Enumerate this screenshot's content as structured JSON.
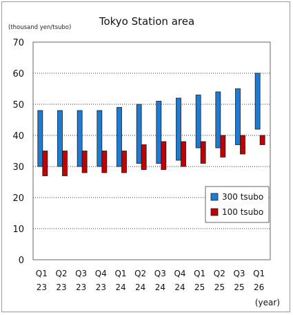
{
  "chart_data": {
    "type": "bar",
    "subtype": "floating-range",
    "title": "Tokyo Station area",
    "ylabel": "(thousand yen/tsubo)",
    "xlabel": "(year)",
    "ylim": [
      0,
      70
    ],
    "yticks": [
      0,
      10,
      20,
      30,
      40,
      50,
      60,
      70
    ],
    "grid": true,
    "legend_position": "lower-right",
    "categories": [
      [
        "Q1",
        "23"
      ],
      [
        "Q2",
        "23"
      ],
      [
        "Q3",
        "23"
      ],
      [
        "Q4",
        "23"
      ],
      [
        "Q1",
        "24"
      ],
      [
        "Q2",
        "24"
      ],
      [
        "Q3",
        "24"
      ],
      [
        "Q4",
        "24"
      ],
      [
        "Q1",
        "25"
      ],
      [
        "Q2",
        "25"
      ],
      [
        "Q3",
        "25"
      ],
      [
        "Q1",
        "26"
      ]
    ],
    "series": [
      {
        "name": "300 tsubo",
        "color": "#1f7ad1",
        "low": [
          30,
          30,
          30,
          30,
          30,
          31,
          31,
          32,
          36,
          36,
          37,
          42
        ],
        "high": [
          48,
          48,
          48,
          48,
          49,
          50,
          51,
          52,
          53,
          54,
          55,
          60
        ]
      },
      {
        "name": "100 tsubo",
        "color": "#c00000",
        "low": [
          27,
          27,
          28,
          28,
          28,
          29,
          29,
          30,
          31,
          33,
          34,
          37
        ],
        "high": [
          35,
          35,
          35,
          35,
          35,
          37,
          38,
          38,
          38,
          40,
          40,
          40
        ]
      }
    ]
  }
}
